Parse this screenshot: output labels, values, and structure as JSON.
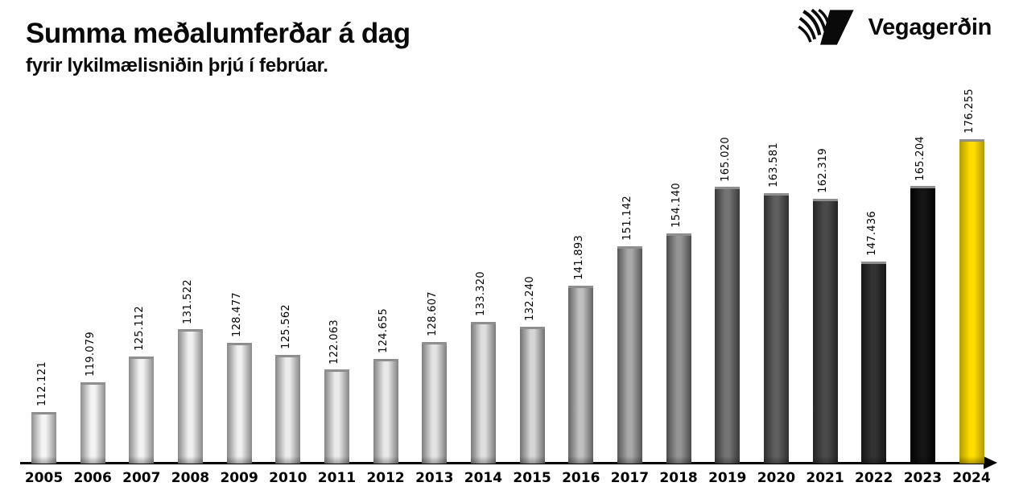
{
  "header": {
    "title": "Summa meðalumferðar á dag",
    "subtitle": "fyrir lykilmælisniðin þrjú í febrúar.",
    "brand": "Vegagerðin"
  },
  "chart_data": {
    "type": "bar",
    "title": "Summa meðalumferðar á dag",
    "subtitle": "fyrir lykilmælisniðin þrjú í febrúar.",
    "categories": [
      "2005",
      "2006",
      "2007",
      "2008",
      "2009",
      "2010",
      "2011",
      "2012",
      "2013",
      "2014",
      "2015",
      "2016",
      "2017",
      "2018",
      "2019",
      "2020",
      "2021",
      "2022",
      "2023",
      "2024"
    ],
    "values": [
      112121,
      119079,
      125112,
      131522,
      128477,
      125562,
      122063,
      124655,
      128607,
      133320,
      132240,
      141893,
      151142,
      154140,
      165020,
      163581,
      162319,
      147436,
      165204,
      176255
    ],
    "value_labels": [
      "112.121",
      "119.079",
      "125.112",
      "131.522",
      "128.477",
      "125.562",
      "122.063",
      "124.655",
      "128.607",
      "133.320",
      "132.240",
      "141.893",
      "151.142",
      "154.140",
      "165.020",
      "163.581",
      "162.319",
      "147.436",
      "165.204",
      "176.255"
    ],
    "xlabel": "",
    "ylabel": "",
    "ylim": [
      100000,
      176255
    ],
    "grid": false,
    "legend": "none",
    "axis_color": "#000000",
    "highlight_year": "2024",
    "highlight_color": "#f5d400",
    "bar_cap_color": "#8e8e8e",
    "bar_colors": [
      {
        "center": "#f4f4f4",
        "edge": "#8f8f8f"
      },
      {
        "center": "#f3f3f3",
        "edge": "#8d8d8d"
      },
      {
        "center": "#f1f1f1",
        "edge": "#8b8b8b"
      },
      {
        "center": "#f0f0f0",
        "edge": "#898989"
      },
      {
        "center": "#eeeeee",
        "edge": "#878787"
      },
      {
        "center": "#ececec",
        "edge": "#858585"
      },
      {
        "center": "#eaeaea",
        "edge": "#838383"
      },
      {
        "center": "#e8e8e8",
        "edge": "#818181"
      },
      {
        "center": "#e3e3e3",
        "edge": "#7d7d7d"
      },
      {
        "center": "#dfdfdf",
        "edge": "#797979"
      },
      {
        "center": "#d5d5d5",
        "edge": "#717171"
      },
      {
        "center": "#bfbfbf",
        "edge": "#646464"
      },
      {
        "center": "#a8a8a8",
        "edge": "#575757"
      },
      {
        "center": "#959595",
        "edge": "#4c4c4c"
      },
      {
        "center": "#747474",
        "edge": "#3a3a3a"
      },
      {
        "center": "#5f5f5f",
        "edge": "#2f2f2f"
      },
      {
        "center": "#4a4a4a",
        "edge": "#252525"
      },
      {
        "center": "#323232",
        "edge": "#171717"
      },
      {
        "center": "#151515",
        "edge": "#020202"
      },
      {
        "center": "#ffdd00",
        "edge": "#b29b00"
      }
    ]
  }
}
